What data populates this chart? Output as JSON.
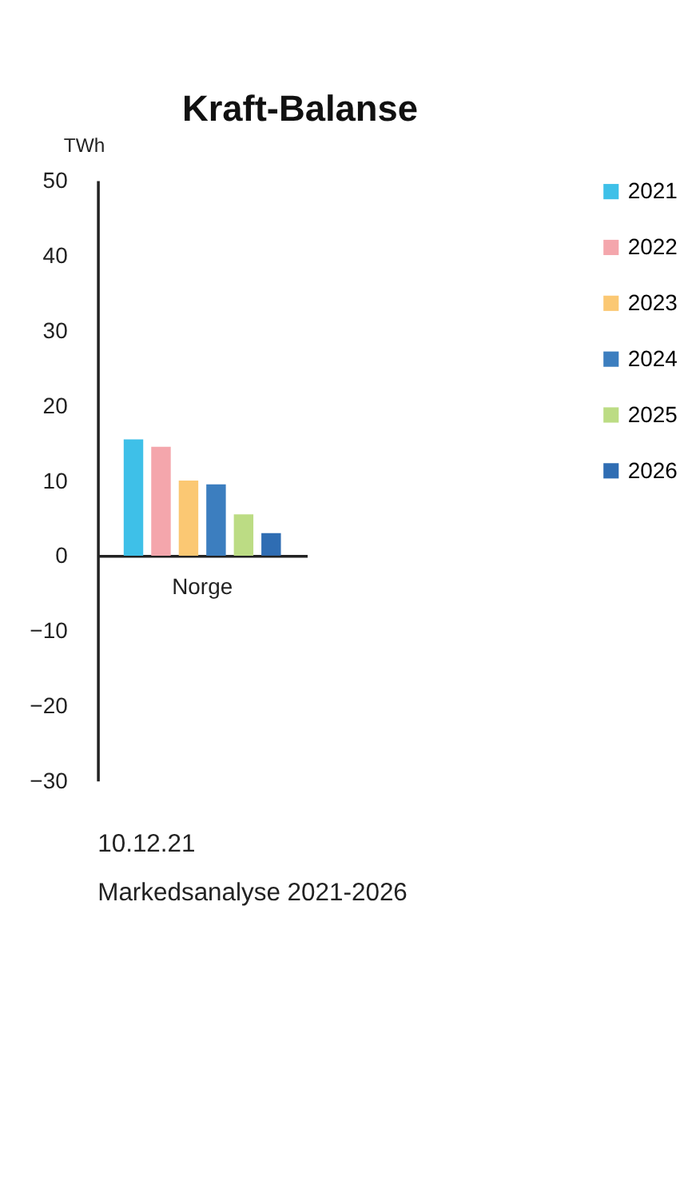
{
  "chart_data": {
    "type": "bar",
    "title": "Kraft-Balanse",
    "ylabel": "TWh",
    "categories": [
      "Norge"
    ],
    "series": [
      {
        "name": "2021",
        "color": "#3ec0e8",
        "values": [
          15.5
        ]
      },
      {
        "name": "2022",
        "color": "#f4a6ac",
        "values": [
          14.5
        ]
      },
      {
        "name": "2023",
        "color": "#fbc873",
        "values": [
          10
        ]
      },
      {
        "name": "2024",
        "color": "#3c7ebf",
        "values": [
          9.5
        ]
      },
      {
        "name": "2025",
        "color": "#bcdc84",
        "values": [
          5.5
        ]
      },
      {
        "name": "2026",
        "color": "#2f6db3",
        "values": [
          3
        ]
      }
    ],
    "ylim": [
      -30,
      50
    ],
    "yticks": [
      -30,
      -20,
      -10,
      0,
      10,
      20,
      30,
      40,
      50
    ],
    "grid": false,
    "legend": "right",
    "annotations": [
      "10.12.21",
      "Markedsanalyse 2021-2026"
    ]
  }
}
